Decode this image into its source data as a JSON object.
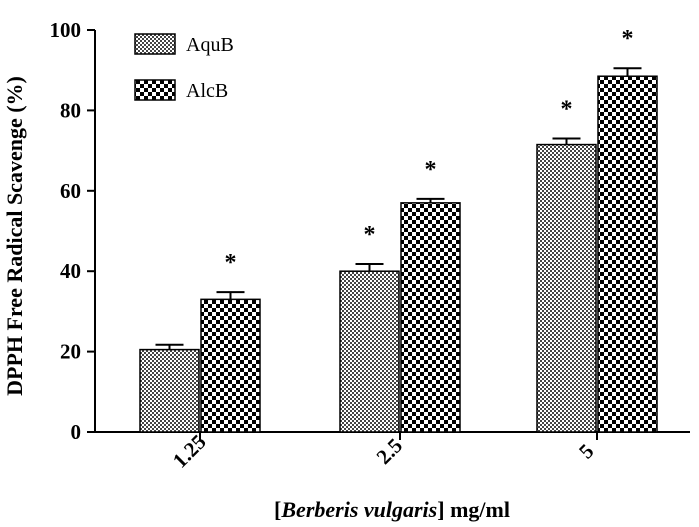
{
  "chart_data": {
    "type": "bar",
    "title": "",
    "xlabel_parts": {
      "open": "[",
      "species": "Berberis vulgaris",
      "close": "]",
      "unit": "mg/ml"
    },
    "ylabel": "DPPH Free Radical Scavenge (%)",
    "ylim": [
      0,
      100
    ],
    "yticks": [
      "0",
      "20",
      "40",
      "60",
      "80",
      "100"
    ],
    "categories": [
      "1.25",
      "2.5",
      "5"
    ],
    "series": [
      {
        "name": "AquB",
        "values": [
          20.5,
          40,
          71.5
        ],
        "errors": [
          1.2,
          1.8,
          1.5
        ],
        "significance": [
          "",
          "*",
          "*"
        ]
      },
      {
        "name": "AlcB",
        "values": [
          33,
          57,
          88.5
        ],
        "errors": [
          1.8,
          1.0,
          2.0
        ],
        "significance": [
          "*",
          "*",
          "*"
        ]
      }
    ],
    "legend_position": "top-left",
    "grid": false
  }
}
